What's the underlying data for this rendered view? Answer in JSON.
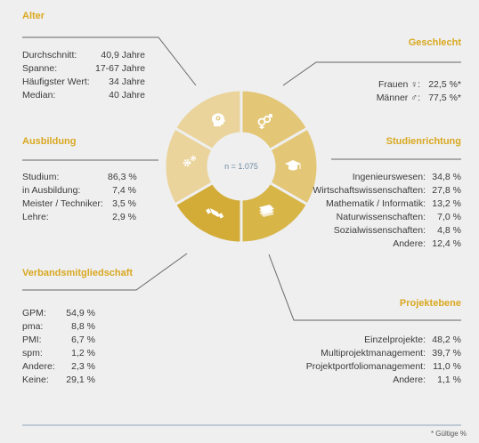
{
  "center": {
    "label": "n = 1.075"
  },
  "colors": {
    "heading": "#d9a820",
    "seg_light": "#ead49b",
    "seg_mid": "#e3c777",
    "seg_dark": "#d7b547",
    "seg_darker": "#d3ac37"
  },
  "segments": [
    {
      "icon": "head-gear-icon"
    },
    {
      "icon": "gender-icon"
    },
    {
      "icon": "graduation-cap-icon"
    },
    {
      "icon": "papers-icon"
    },
    {
      "icon": "handshake-icon"
    },
    {
      "icon": "gears-icon"
    }
  ],
  "alter": {
    "title": "Alter",
    "rows": [
      {
        "label": "Durchschnitt:",
        "value": "40,9 Jahre"
      },
      {
        "label": "Spanne:",
        "value": "17-67 Jahre"
      },
      {
        "label": "Häufigster Wert:",
        "value": "34 Jahre"
      },
      {
        "label": "Median:",
        "value": "40 Jahre"
      }
    ]
  },
  "ausbildung": {
    "title": "Ausbildung",
    "rows": [
      {
        "label": "Studium:",
        "value": "86,3 %"
      },
      {
        "label": "in Ausbildung:",
        "value": "7,4 %"
      },
      {
        "label": "Meister / Techniker:",
        "value": "3,5 %"
      },
      {
        "label": "Lehre:",
        "value": "2,9 %"
      }
    ]
  },
  "verband": {
    "title": "Verbandsmitgliedschaft",
    "rows": [
      {
        "label": "GPM:",
        "value": "54,9 %"
      },
      {
        "label": "pma:",
        "value": "8,8 %"
      },
      {
        "label": "PMI:",
        "value": "6,7 %"
      },
      {
        "label": "spm:",
        "value": "1,2 %"
      },
      {
        "label": "Andere:",
        "value": "2,3 %"
      },
      {
        "label": "Keine:",
        "value": "29,1 %"
      }
    ]
  },
  "geschlecht": {
    "title": "Geschlecht",
    "rows": [
      {
        "label": "Frauen ♀:",
        "value": "22,5 %*"
      },
      {
        "label": "Männer ♂:",
        "value": "77,5 %*"
      }
    ]
  },
  "studien": {
    "title": "Studienrichtung",
    "rows": [
      {
        "label": "Ingenieurswesen:",
        "value": "34,8 %"
      },
      {
        "label": "Wirtschaftswissenschaften:",
        "value": "27,8 %"
      },
      {
        "label": "Mathematik / Informatik:",
        "value": "13,2 %"
      },
      {
        "label": "Naturwissenschaften:",
        "value": "7,0 %"
      },
      {
        "label": "Sozialwissenschaften:",
        "value": "4,8 %"
      },
      {
        "label": "Andere:",
        "value": "12,4 %"
      }
    ]
  },
  "projekt": {
    "title": "Projektebene",
    "rows": [
      {
        "label": "Einzelprojekte:",
        "value": "48,2 %"
      },
      {
        "label": "Multiprojektmanagement:",
        "value": "39,7 %"
      },
      {
        "label": "Projektportfoliomanagement:",
        "value": "11,0 %"
      },
      {
        "label": "Andere:",
        "value": "1,1 %"
      }
    ]
  },
  "footnote": "* Gültige %"
}
